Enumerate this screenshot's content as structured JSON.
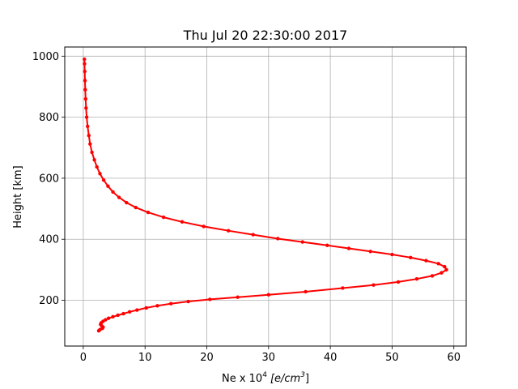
{
  "chart_data": {
    "type": "line",
    "title": "Thu Jul 20 22:30:00 2017",
    "xlabel": {
      "prefix": "Ne x 10",
      "exponent": "4",
      "units": "[e/cm",
      "units_exponent": "3",
      "units_close": "]"
    },
    "ylabel": "Height [km]",
    "xlim": [
      -3,
      62
    ],
    "ylim": [
      50,
      1030
    ],
    "xticks": [
      0,
      10,
      20,
      30,
      40,
      50,
      60
    ],
    "yticks": [
      200,
      400,
      600,
      800,
      1000
    ],
    "grid": true,
    "line_color": "#ff0000",
    "marker": "circle",
    "series": [
      {
        "points": [
          [
            2.5,
            100
          ],
          [
            2.7,
            104
          ],
          [
            3.1,
            108
          ],
          [
            3.2,
            112
          ],
          [
            3.0,
            116
          ],
          [
            2.8,
            121
          ],
          [
            2.9,
            126
          ],
          [
            3.2,
            131
          ],
          [
            3.6,
            136
          ],
          [
            4.1,
            141
          ],
          [
            4.8,
            146
          ],
          [
            5.6,
            151
          ],
          [
            6.5,
            156
          ],
          [
            7.5,
            162
          ],
          [
            8.7,
            168
          ],
          [
            10.2,
            175
          ],
          [
            12.0,
            182
          ],
          [
            14.2,
            189
          ],
          [
            17.0,
            196
          ],
          [
            20.5,
            203
          ],
          [
            25.0,
            210
          ],
          [
            30.0,
            218
          ],
          [
            36.0,
            228
          ],
          [
            42.0,
            240
          ],
          [
            47.0,
            250
          ],
          [
            51.0,
            260
          ],
          [
            54.0,
            270
          ],
          [
            56.5,
            280
          ],
          [
            58.0,
            290
          ],
          [
            58.8,
            300
          ],
          [
            58.5,
            310
          ],
          [
            57.5,
            320
          ],
          [
            55.5,
            330
          ],
          [
            53.0,
            340
          ],
          [
            50.0,
            350
          ],
          [
            46.5,
            360
          ],
          [
            43.0,
            370
          ],
          [
            39.5,
            380
          ],
          [
            35.5,
            391
          ],
          [
            31.5,
            402
          ],
          [
            27.5,
            415
          ],
          [
            23.5,
            428
          ],
          [
            19.5,
            442
          ],
          [
            16.0,
            457
          ],
          [
            13.0,
            472
          ],
          [
            10.5,
            488
          ],
          [
            8.5,
            504
          ],
          [
            7.0,
            520
          ],
          [
            5.8,
            537
          ],
          [
            4.8,
            555
          ],
          [
            4.0,
            574
          ],
          [
            3.3,
            594
          ],
          [
            2.7,
            615
          ],
          [
            2.2,
            637
          ],
          [
            1.8,
            660
          ],
          [
            1.4,
            685
          ],
          [
            1.1,
            712
          ],
          [
            0.9,
            740
          ],
          [
            0.7,
            770
          ],
          [
            0.55,
            800
          ],
          [
            0.45,
            830
          ],
          [
            0.38,
            860
          ],
          [
            0.32,
            890
          ],
          [
            0.28,
            920
          ],
          [
            0.24,
            950
          ],
          [
            0.2,
            975
          ],
          [
            0.18,
            990
          ]
        ]
      }
    ]
  }
}
